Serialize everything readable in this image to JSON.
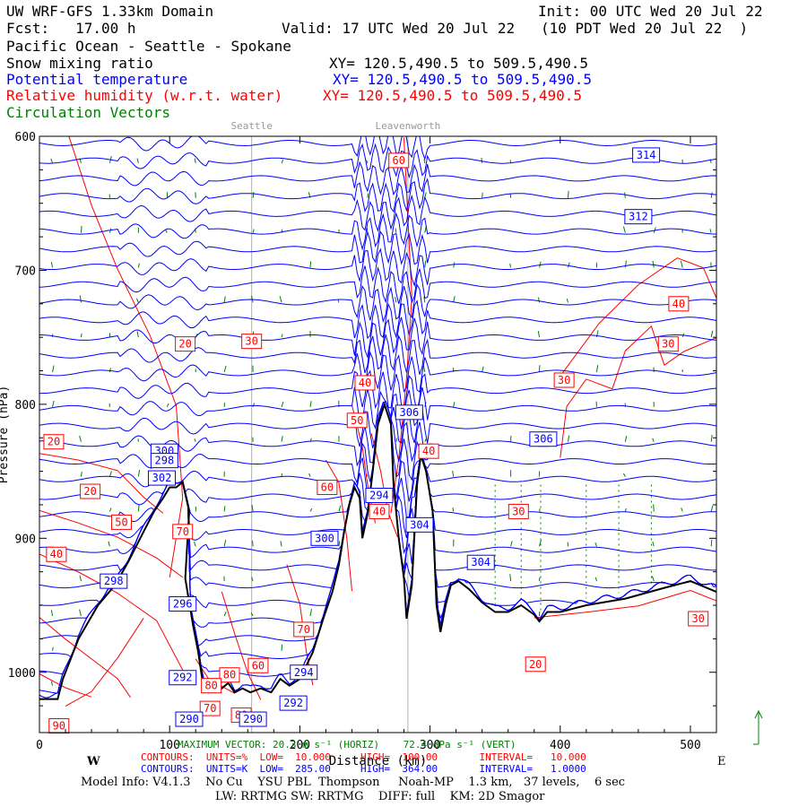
{
  "header": {
    "title": "UW WRF-GFS 1.33km Domain",
    "init": "Init: 00 UTC Wed 20 Jul 22",
    "fcst": "Fcst:   17.00 h",
    "valid": "Valid: 17 UTC Wed 20 Jul 22   (10 PDT Wed 20 Jul 22  )",
    "region": "Pacific Ocean - Seattle - Spokane",
    "fields": [
      {
        "label": "Snow mixing ratio",
        "xy": "XY= 120.5,490.5 to 509.5,490.5",
        "color": "#000000"
      },
      {
        "label": "Potential temperature",
        "xy": "XY= 120.5,490.5 to 509.5,490.5",
        "color": "#0000ff"
      },
      {
        "label": "Relative humidity (w.r.t. water)",
        "xy": "XY= 120.5,490.5 to 509.5,490.5",
        "color": "#ff0000"
      },
      {
        "label": "Circulation Vectors",
        "xy": "",
        "color": "#008000"
      }
    ]
  },
  "chart_data": {
    "type": "cross-section",
    "x_range": [
      0,
      520
    ],
    "y_range": [
      1045,
      600
    ],
    "x_ticks": [
      0,
      100,
      200,
      300,
      400,
      500
    ],
    "y_ticks": [
      600,
      700,
      800,
      900,
      1000
    ],
    "y_tick_labels": [
      "600",
      "700",
      "800",
      "900",
      "1000"
    ],
    "x_tick_labels": [
      "0",
      "100",
      "200",
      "300",
      "400",
      "500"
    ],
    "y_axis_label": "Pressure (hPa)",
    "x_axis_label": "Distance (km)",
    "location_markers": [
      {
        "name": "Seattle",
        "x": 163
      },
      {
        "name": "Leavenworth",
        "x": 283
      }
    ],
    "terrain": [
      [
        0,
        1020
      ],
      [
        14,
        1020
      ],
      [
        18,
        1005
      ],
      [
        30,
        975
      ],
      [
        45,
        950
      ],
      [
        58,
        935
      ],
      [
        68,
        918
      ],
      [
        80,
        895
      ],
      [
        88,
        880
      ],
      [
        95,
        870
      ],
      [
        100,
        862
      ],
      [
        105,
        862
      ],
      [
        110,
        858
      ],
      [
        115,
        880
      ],
      [
        112,
        930
      ],
      [
        118,
        965
      ],
      [
        122,
        985
      ],
      [
        125,
        1005
      ],
      [
        130,
        1015
      ],
      [
        140,
        1012
      ],
      [
        145,
        1008
      ],
      [
        150,
        1015
      ],
      [
        156,
        1012
      ],
      [
        162,
        1015
      ],
      [
        170,
        1012
      ],
      [
        178,
        1015
      ],
      [
        185,
        1005
      ],
      [
        192,
        1010
      ],
      [
        200,
        1005
      ],
      [
        210,
        985
      ],
      [
        218,
        960
      ],
      [
        225,
        940
      ],
      [
        230,
        920
      ],
      [
        234,
        895
      ],
      [
        238,
        875
      ],
      [
        242,
        862
      ],
      [
        246,
        870
      ],
      [
        248,
        900
      ],
      [
        252,
        882
      ],
      [
        256,
        850
      ],
      [
        260,
        815
      ],
      [
        265,
        800
      ],
      [
        270,
        815
      ],
      [
        272,
        860
      ],
      [
        276,
        900
      ],
      [
        280,
        930
      ],
      [
        282,
        960
      ],
      [
        286,
        935
      ],
      [
        290,
        860
      ],
      [
        293,
        838
      ],
      [
        297,
        850
      ],
      [
        302,
        880
      ],
      [
        305,
        950
      ],
      [
        308,
        970
      ],
      [
        312,
        950
      ],
      [
        316,
        935
      ],
      [
        322,
        932
      ],
      [
        330,
        938
      ],
      [
        340,
        948
      ],
      [
        350,
        955
      ],
      [
        360,
        955
      ],
      [
        370,
        950
      ],
      [
        380,
        957
      ],
      [
        384,
        962
      ],
      [
        390,
        955
      ],
      [
        400,
        955
      ],
      [
        420,
        950
      ],
      [
        450,
        945
      ],
      [
        480,
        937
      ],
      [
        500,
        932
      ],
      [
        520,
        940
      ]
    ],
    "rh_labels": [
      [
        "60",
        276,
        618
      ],
      [
        "40",
        491,
        725
      ],
      [
        "30",
        163,
        753
      ],
      [
        "20",
        112,
        755
      ],
      [
        "30",
        483,
        755
      ],
      [
        "30",
        403,
        782
      ],
      [
        "40",
        250,
        784
      ],
      [
        "50",
        244,
        812
      ],
      [
        "20",
        11,
        828
      ],
      [
        "40",
        299,
        835
      ],
      [
        "20",
        39,
        865
      ],
      [
        "60",
        221,
        862
      ],
      [
        "50",
        63,
        888
      ],
      [
        "30",
        368,
        880
      ],
      [
        "40",
        261,
        880
      ],
      [
        "70",
        110,
        895
      ],
      [
        "40",
        13,
        912
      ],
      [
        "70",
        203,
        968
      ],
      [
        "20",
        381,
        994
      ],
      [
        "30",
        506,
        960
      ],
      [
        "60",
        168,
        995
      ],
      [
        "80",
        146,
        1002
      ],
      [
        "80",
        132,
        1010
      ],
      [
        "70",
        131,
        1027
      ],
      [
        "80",
        155,
        1032
      ],
      [
        "90",
        15,
        1040
      ]
    ],
    "theta_labels": [
      [
        "314",
        466,
        614
      ],
      [
        "312",
        460,
        660
      ],
      [
        "306",
        284,
        806
      ],
      [
        "306",
        387,
        826
      ],
      [
        "300",
        96,
        835
      ],
      [
        "298",
        96,
        842
      ],
      [
        "294",
        261,
        868
      ],
      [
        "302",
        94,
        855
      ],
      [
        "304",
        292,
        890
      ],
      [
        "304",
        339,
        918
      ],
      [
        "300",
        219,
        900
      ],
      [
        "298",
        57,
        932
      ],
      [
        "296",
        110,
        949
      ],
      [
        "292",
        110,
        1004
      ],
      [
        "294",
        203,
        1000
      ],
      [
        "292",
        195,
        1023
      ],
      [
        "290",
        115,
        1035
      ],
      [
        "290",
        164,
        1035
      ]
    ],
    "rh_style": "#ff0000",
    "theta_style": "#0000ff",
    "terrain_style": "#000000",
    "vector_color": "#008000"
  },
  "footer": {
    "max_vector": "MAXIMUM VECTOR: 20.3 m s⁻¹ (HORIZ)    72.4 dPa s⁻¹ (VERT)",
    "contours_rh": "CONTOURS:  UNITS=%  LOW=  10.000     HIGH=  100.00       INTERVAL=   10.000",
    "contours_theta": "CONTOURS:  UNITS=K  LOW=  285.00     HIGH=  364.00       INTERVAL=   1.0000",
    "dir_west": "W",
    "dir_east": "E",
    "model_info": "Model Info: V4.1.3    No Cu    YSU PBL  Thompson     Noah-MP    1.3 km,   37 levels,    6 sec",
    "model_info2": "LW: RRTMG SW: RRTMG    DIFF: full    KM: 2D Smagor"
  }
}
